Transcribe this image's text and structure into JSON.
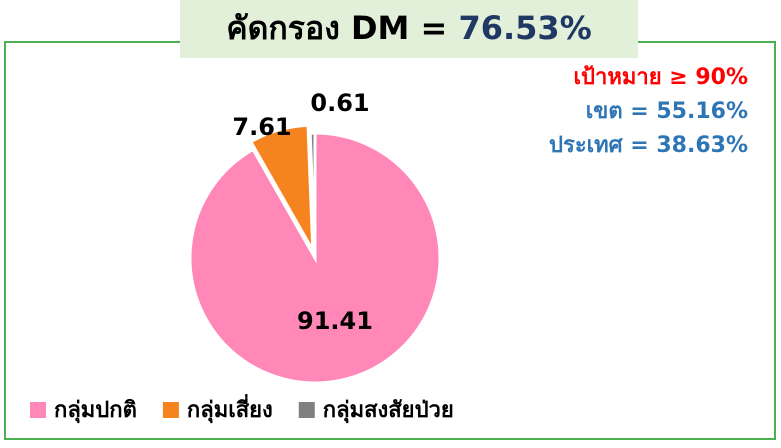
{
  "chart_data": {
    "type": "pie",
    "title": "คัดกรอง DM =",
    "title_value": "76.53%",
    "title_value_color": "#1f3864",
    "annotations": [
      {
        "text": "เป้าหมาย ≥ 90%",
        "color": "#ff0000"
      },
      {
        "text": "เขต = 55.16%",
        "color": "#2e75b6"
      },
      {
        "text": "ประเทศ = 38.63%",
        "color": "#2e75b6"
      }
    ],
    "categories": [
      "กลุ่มปกติ",
      "กลุ่มเสี่ยง",
      "กลุ่มสงสัยป่วย"
    ],
    "values": [
      91.41,
      7.61,
      0.61
    ],
    "colors": [
      "#ff88b8",
      "#f5841f",
      "#808080"
    ],
    "legend": "bottom"
  }
}
